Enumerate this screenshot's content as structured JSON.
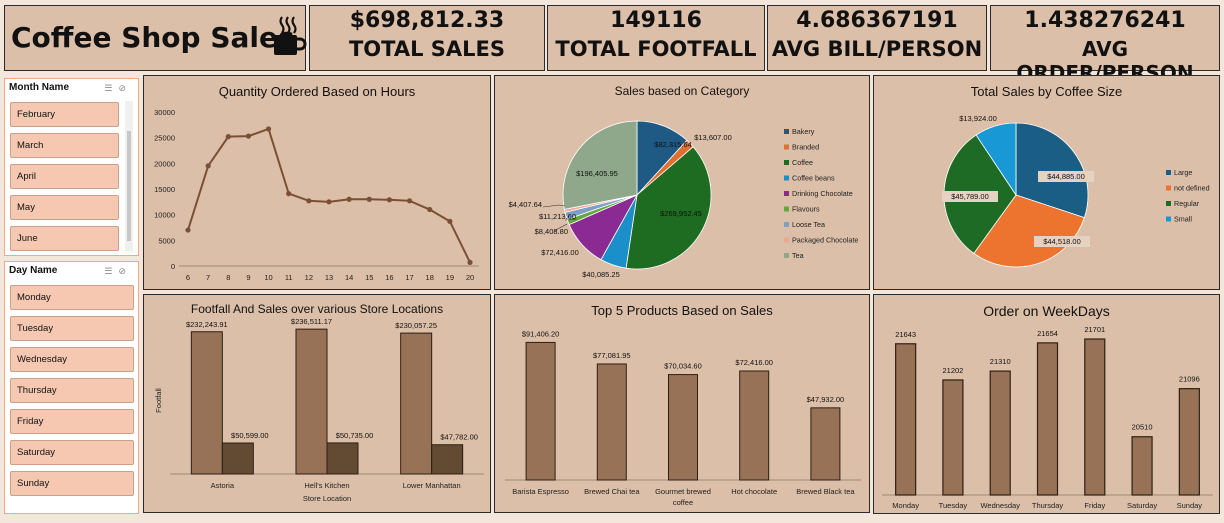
{
  "header": {
    "title": "Coffee Shop Sales"
  },
  "kpis": [
    {
      "value": "$698,812.33",
      "label": "TOTAL SALES"
    },
    {
      "value": "149116",
      "label": "TOTAL FOOTFALL"
    },
    {
      "value": "4.686367191",
      "label": "AVG BILL/PERSON"
    },
    {
      "value": "1.438276241",
      "label": "AVG ORDER/PERSON"
    }
  ],
  "slicers": {
    "month": {
      "title": "Month Name",
      "items": [
        "February",
        "March",
        "April",
        "May",
        "June"
      ]
    },
    "day": {
      "title": "Day Name",
      "items": [
        "Monday",
        "Tuesday",
        "Wednesday",
        "Thursday",
        "Friday",
        "Saturday",
        "Sunday"
      ]
    }
  },
  "colors": {
    "bar": "#987257",
    "bar_dark": "#634a33",
    "line": "#7b4f35",
    "panel": "#dcbfa8",
    "slicer_item": "#f6c8b1"
  },
  "charts": {
    "hours": {
      "title": "Quantity Ordered Based on Hours"
    },
    "category": {
      "title": "Sales based on Category"
    },
    "size": {
      "title": "Total Sales by Coffee Size"
    },
    "locations": {
      "title": "Footfall And Sales over various Store Locations"
    },
    "products": {
      "title": "Top 5 Products Based on Sales"
    },
    "weekdays": {
      "title": "Order on WeekDays"
    }
  },
  "chart_data": [
    {
      "id": "hours",
      "type": "line",
      "title": "Quantity Ordered Based on Hours",
      "x": [
        6,
        7,
        8,
        9,
        10,
        11,
        12,
        13,
        14,
        15,
        16,
        17,
        18,
        19,
        20
      ],
      "values": [
        7000,
        19500,
        25200,
        25300,
        26700,
        14100,
        12700,
        12500,
        13000,
        13000,
        12900,
        12700,
        11000,
        8700,
        700
      ],
      "ylim": [
        0,
        30000
      ],
      "yticks": [
        "0",
        "5000",
        "10000",
        "15000",
        "20000",
        "25000",
        "30000"
      ],
      "grid": false
    },
    {
      "id": "category",
      "type": "pie",
      "title": "Sales based on Category",
      "labels": [
        "Bakery",
        "Branded",
        "Coffee",
        "Coffee beans",
        "Drinking Chocolate",
        "Flavours",
        "Loose Tea",
        "Packaged Chocolate",
        "Tea"
      ],
      "values": [
        82315.64,
        13607.0,
        269952.45,
        40085.25,
        72416.0,
        8408.8,
        11213.6,
        4407.64,
        196405.95
      ],
      "value_labels": [
        "$82,315.64",
        "$13,607.00",
        "$269,952.45",
        "$40,085.25",
        "$72,416.00",
        "$8,408.80",
        "$11,213.60",
        "$4,407.64",
        "$196,405.95"
      ],
      "colors": [
        "#1f5a85",
        "#e07030",
        "#1e6b22",
        "#1b8fc9",
        "#8b2a93",
        "#62a83a",
        "#7f9fc5",
        "#f1a692",
        "#8fa88b"
      ],
      "legend": "right"
    },
    {
      "id": "size",
      "type": "pie",
      "title": "Total Sales by Coffee Size",
      "labels": [
        "Large",
        "not defined",
        "Regular",
        "Small"
      ],
      "values": [
        44885,
        44518,
        45789,
        13924
      ],
      "value_labels": [
        "$44,885.00",
        "$44,518.00",
        "$45,789.00",
        "$13,924.00"
      ],
      "colors": [
        "#1a5d85",
        "#ec742e",
        "#1d6b25",
        "#1998d6"
      ],
      "legend": "right"
    },
    {
      "id": "locations",
      "type": "bar",
      "title": "Footfall And Sales over various Store Locations",
      "categories": [
        "Astoria",
        "Hell's Kitchen",
        "Lower Manhattan"
      ],
      "series": [
        {
          "values": [
            232243.91,
            236511.17,
            230057.25
          ],
          "labels": [
            "$232,243.91",
            "$236,511.17",
            "$230,057.25"
          ]
        },
        {
          "values": [
            50599,
            50735,
            47782
          ],
          "labels": [
            "$50,599.00",
            "$50,735.00",
            "$47,782.00"
          ]
        }
      ],
      "xlabel": "Store Location",
      "ylabel": "Footfall",
      "ylim": [
        0,
        240000
      ]
    },
    {
      "id": "products",
      "type": "bar",
      "title": "Top 5 Products Based on Sales",
      "categories": [
        [
          "Barista Espresso"
        ],
        [
          "Brewed Chai tea"
        ],
        [
          "Gourmet brewed",
          "coffee"
        ],
        [
          "Hot chocolate"
        ],
        [
          "Brewed Black tea"
        ]
      ],
      "values": [
        91406.2,
        77081.95,
        70034.6,
        72416.0,
        47932.0
      ],
      "labels": [
        "$91,406.20",
        "$77,081.95",
        "$70,034.60",
        "$72,416.00",
        "$47,932.00"
      ],
      "ylim": [
        0,
        95000
      ]
    },
    {
      "id": "weekdays",
      "type": "bar",
      "title": "Order on WeekDays",
      "categories": [
        "Monday",
        "Tuesday",
        "Wednesday",
        "Thursday",
        "Friday",
        "Saturday",
        "Sunday"
      ],
      "values": [
        21643,
        21202,
        21310,
        21654,
        21701,
        20510,
        21096
      ],
      "labels": [
        "21643",
        "21202",
        "21310",
        "21654",
        "21701",
        "20510",
        "21096"
      ],
      "ylim": [
        19800,
        21750
      ]
    }
  ]
}
